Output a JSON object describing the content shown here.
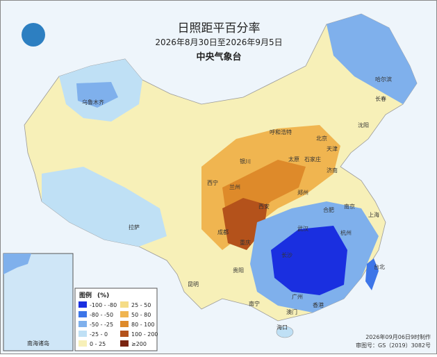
{
  "header": {
    "title": "日照距平百分率",
    "period": "2026年8月30日至2026年9月5日",
    "issuer": "中央气象台"
  },
  "legend": {
    "title": "图例",
    "unit": "(%)",
    "items": [
      {
        "label": "-100 - -80",
        "color": "#1a2fe0"
      },
      {
        "label": "-80 - -50",
        "color": "#3d75e8"
      },
      {
        "label": "-50 - -25",
        "color": "#7fb0ec"
      },
      {
        "label": "-25 - 0",
        "color": "#bfe0f5"
      },
      {
        "label": "0 - 25",
        "color": "#f7f0b8"
      },
      {
        "label": "25 - 50",
        "color": "#f5dc86"
      },
      {
        "label": "50 - 80",
        "color": "#f0b550"
      },
      {
        "label": "80 - 100",
        "color": "#de8a2a"
      },
      {
        "label": "100 - 200",
        "color": "#b4521b"
      },
      {
        "label": "≥200",
        "color": "#7a2410"
      }
    ]
  },
  "cities": [
    "乌鲁木齐",
    "哈尔滨",
    "长春",
    "沈阳",
    "呼和浩特",
    "北京",
    "天津",
    "石家庄",
    "太原",
    "济南",
    "银川",
    "兰州",
    "西宁",
    "郑州",
    "西安",
    "合肥",
    "南京",
    "上海",
    "武汉",
    "成都",
    "重庆",
    "长沙",
    "杭州",
    "贵阳",
    "昆明",
    "南宁",
    "广州",
    "香港",
    "澳门",
    "海口",
    "台北",
    "拉萨"
  ],
  "inset": {
    "label": "南海诸岛"
  },
  "footer": {
    "made": "2026年09月06日9时制作",
    "approval": "审图号：GS（2019）3082号"
  }
}
